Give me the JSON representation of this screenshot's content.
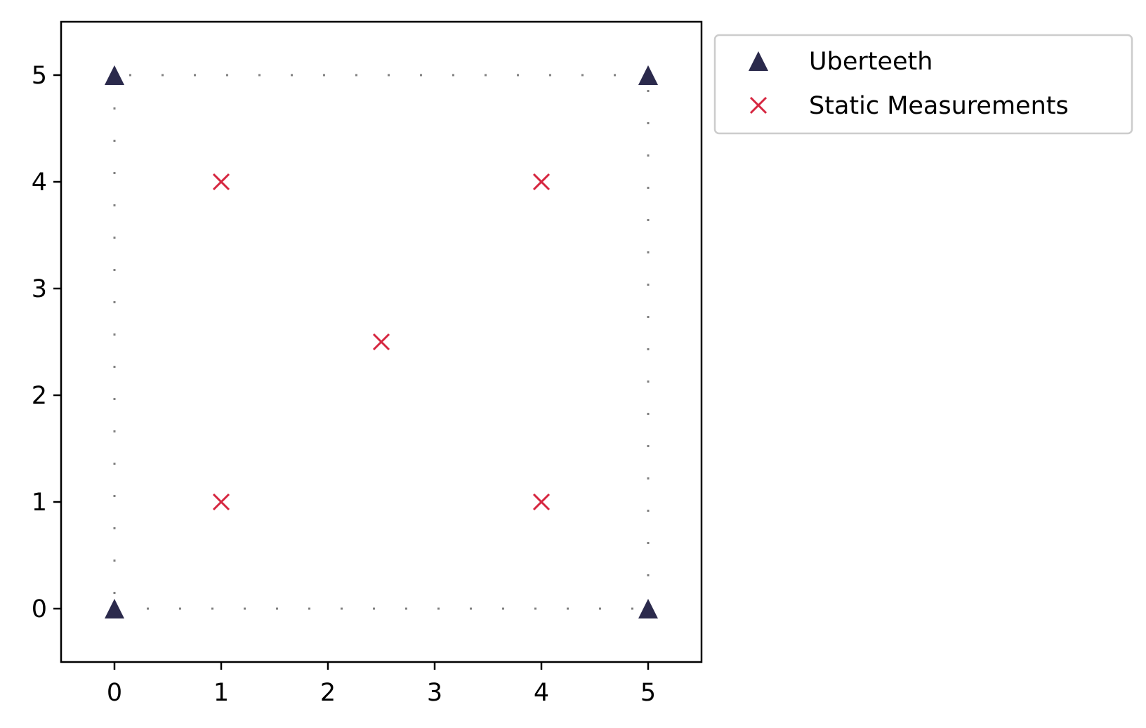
{
  "chart_data": {
    "type": "scatter",
    "title": "",
    "xlabel": "",
    "ylabel": "",
    "xlim": [
      -0.5,
      5.5
    ],
    "ylim": [
      -0.5,
      5.5
    ],
    "xticks": [
      "0",
      "1",
      "2",
      "3",
      "4",
      "5"
    ],
    "yticks": [
      "0",
      "1",
      "2",
      "3",
      "4",
      "5"
    ],
    "grid": false,
    "legend_position": "outside upper right",
    "boundary": {
      "style": "dotted",
      "color": "#808080",
      "corners": [
        [
          0,
          0
        ],
        [
          5,
          0
        ],
        [
          5,
          5
        ],
        [
          0,
          5
        ]
      ]
    },
    "series": [
      {
        "name": "Uberteeth",
        "marker": "triangle-up",
        "color": "#2b2a4c",
        "points": [
          [
            0,
            0
          ],
          [
            5,
            0
          ],
          [
            0,
            5
          ],
          [
            5,
            5
          ]
        ]
      },
      {
        "name": "Static Measurements",
        "marker": "x",
        "color": "#d62640",
        "points": [
          [
            1,
            1
          ],
          [
            4,
            1
          ],
          [
            2.5,
            2.5
          ],
          [
            1,
            4
          ],
          [
            4,
            4
          ]
        ]
      }
    ]
  }
}
